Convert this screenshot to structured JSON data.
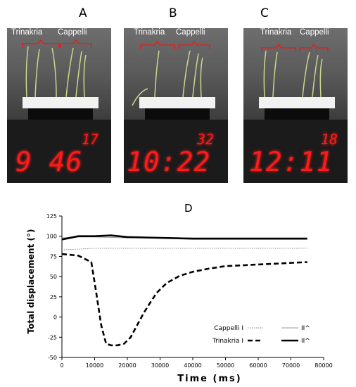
{
  "panels": [
    {
      "letter": "A",
      "label_left": "Trinakria",
      "label_right": "Cappelli",
      "seconds_display": "17",
      "time_display": "9 46"
    },
    {
      "letter": "B",
      "label_left": "Trinakria",
      "label_right": "Cappelli",
      "seconds_display": "32",
      "time_display": "10:22"
    },
    {
      "letter": "C",
      "label_left": "Trinakria",
      "label_right": "Cappelli",
      "seconds_display": "18",
      "time_display": "12:11"
    }
  ],
  "panel_d_letter": "D",
  "colors": {
    "bracket": "#e02020",
    "digits": "#ff1a1a",
    "line": "#000000",
    "gray_line": "#9a9a9a"
  },
  "chart_data": {
    "type": "line",
    "xlabel": "Time (ms)",
    "ylabel": "Total displacement (°)",
    "xlim": [
      0,
      80000
    ],
    "ylim": [
      -50,
      125
    ],
    "xticks": [
      "0",
      "10000",
      "20000",
      "30000",
      "40000",
      "50000",
      "60000",
      "70000",
      "80000"
    ],
    "yticks": [
      "125",
      "100",
      "75",
      "50",
      "25",
      "0",
      "-25",
      "-50"
    ],
    "legend_position": "bottom-right",
    "series": [
      {
        "name": "Cappelli I",
        "style": "dotted",
        "x": [
          0,
          5000,
          10000,
          20000,
          40000,
          60000,
          75000
        ],
        "y": [
          83,
          84,
          85,
          85,
          85,
          85,
          85
        ]
      },
      {
        "name": "II^",
        "style": "thin-gray",
        "x": [
          0,
          5000,
          10000,
          20000,
          40000,
          60000,
          75000
        ],
        "y": [
          98,
          99,
          99,
          98,
          98,
          98,
          98
        ]
      },
      {
        "name": "Trinakria I",
        "style": "dashed-bold",
        "x": [
          0,
          5000,
          9000,
          10500,
          12000,
          13500,
          15000,
          17000,
          19000,
          21000,
          23000,
          25000,
          27000,
          29000,
          32000,
          36000,
          40000,
          45000,
          50000,
          55000,
          60000,
          65000,
          70000,
          75000
        ],
        "y": [
          78,
          76,
          68,
          30,
          -10,
          -33,
          -35,
          -35,
          -33,
          -25,
          -10,
          5,
          18,
          30,
          42,
          51,
          56,
          60,
          63,
          64,
          65,
          66,
          67,
          68
        ]
      },
      {
        "name": "II^",
        "style": "solid-bold",
        "x": [
          0,
          5000,
          10000,
          15000,
          20000,
          30000,
          40000,
          60000,
          75000
        ],
        "y": [
          96,
          100,
          100,
          101,
          99,
          98,
          97,
          97,
          97
        ]
      }
    ]
  }
}
